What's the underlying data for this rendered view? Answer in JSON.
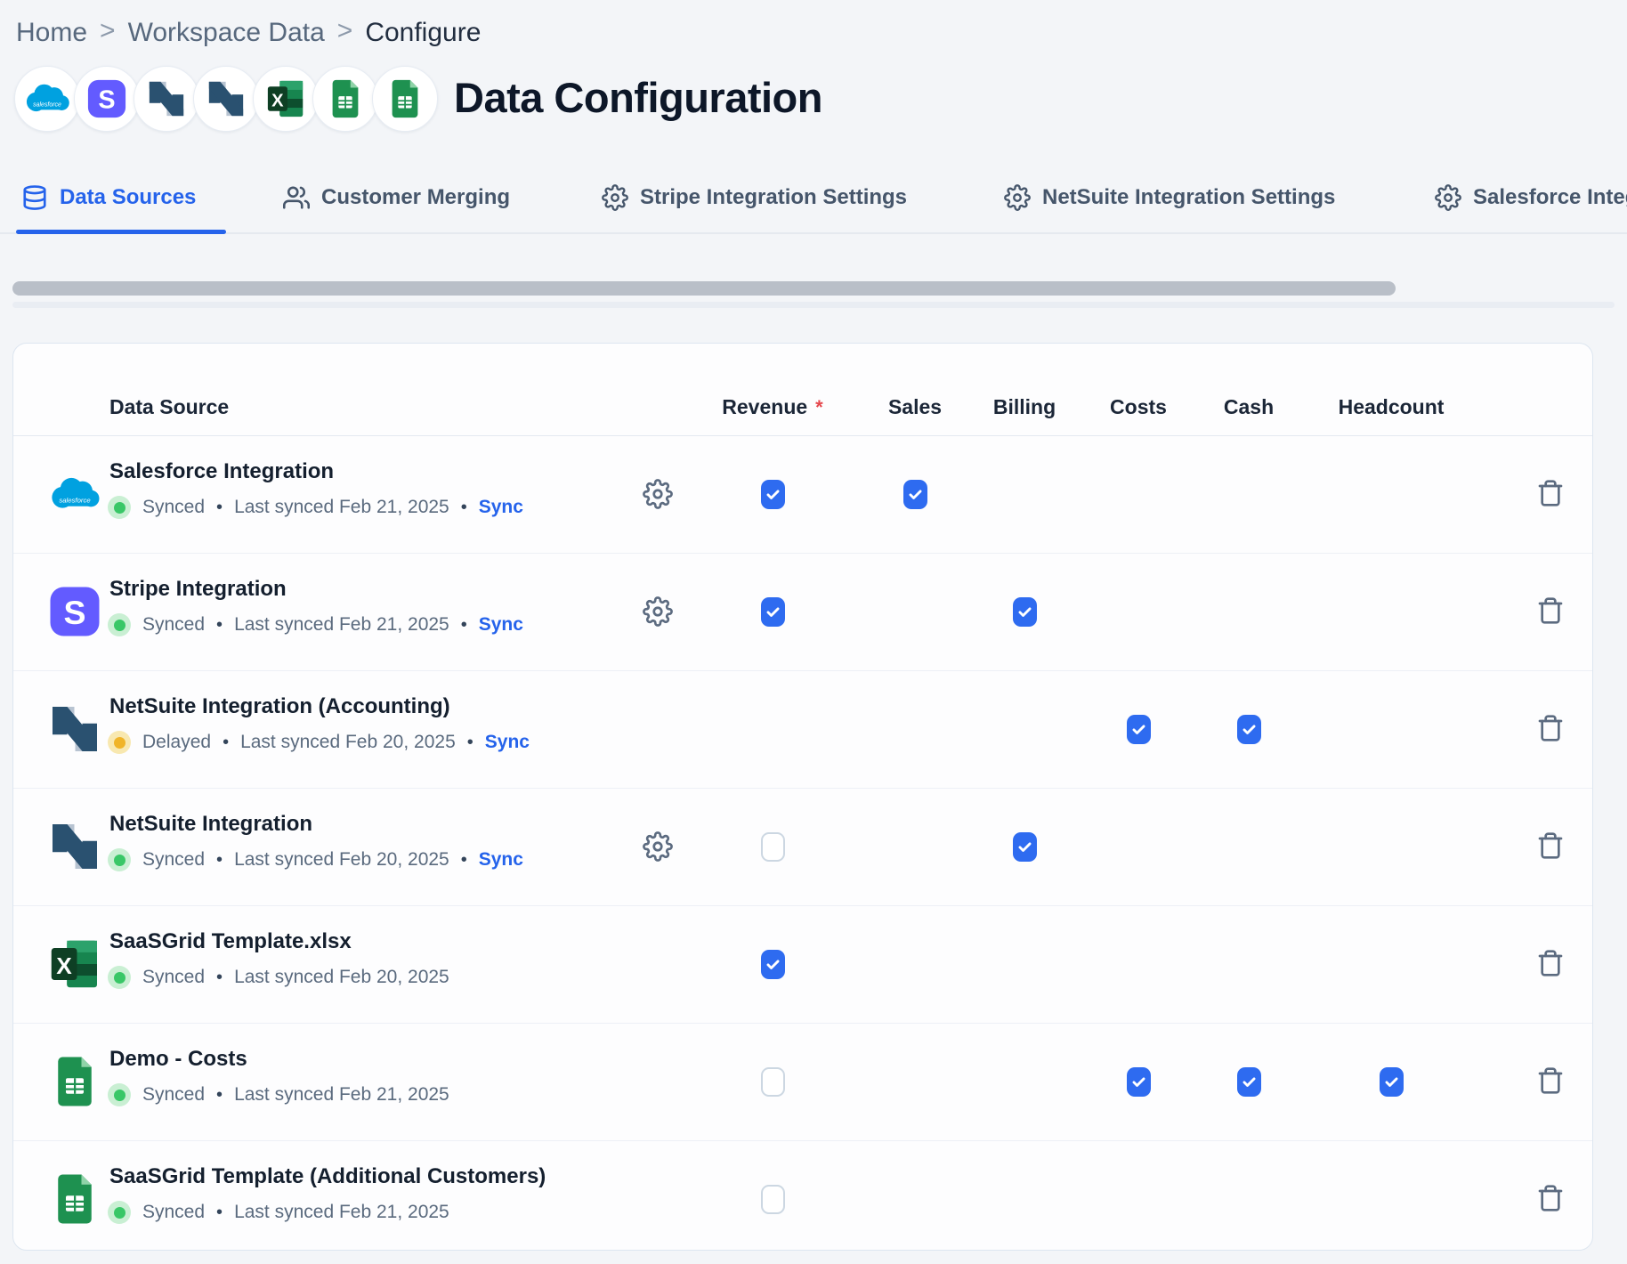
{
  "breadcrumb": {
    "separator": ">",
    "items": [
      {
        "label": "Home"
      },
      {
        "label": "Workspace Data"
      },
      {
        "label": "Configure"
      }
    ]
  },
  "header": {
    "title": "Data Configuration",
    "source_icons": [
      "salesforce",
      "stripe",
      "netsuite",
      "netsuite",
      "excel",
      "gsheets",
      "gsheets"
    ]
  },
  "tabs": [
    {
      "label": "Data Sources",
      "icon": "database-icon",
      "active": true
    },
    {
      "label": "Customer Merging",
      "icon": "users-icon",
      "active": false
    },
    {
      "label": "Stripe Integration Settings",
      "icon": "gear-icon",
      "active": false
    },
    {
      "label": "NetSuite Integration Settings",
      "icon": "gear-icon",
      "active": false
    },
    {
      "label": "Salesforce Integration Settings",
      "icon": "gear-icon",
      "active": false
    }
  ],
  "table": {
    "columns": {
      "data_source": "Data Source",
      "revenue": "Revenue",
      "sales": "Sales",
      "billing": "Billing",
      "costs": "Costs",
      "cash": "Cash",
      "headcount": "Headcount"
    },
    "required_marker": "*",
    "rows": [
      {
        "name": "Salesforce Integration",
        "icon": "salesforce",
        "status": "Synced",
        "status_color": "green",
        "last_synced": "Last synced Feb 21, 2025",
        "sync_link": "Sync",
        "has_settings": true,
        "checks": {
          "revenue": "checked",
          "sales": "checked"
        }
      },
      {
        "name": "Stripe Integration",
        "icon": "stripe",
        "status": "Synced",
        "status_color": "green",
        "last_synced": "Last synced Feb 21, 2025",
        "sync_link": "Sync",
        "has_settings": true,
        "checks": {
          "revenue": "checked",
          "billing": "checked"
        }
      },
      {
        "name": "NetSuite Integration (Accounting)",
        "icon": "netsuite",
        "status": "Delayed",
        "status_color": "yellow",
        "last_synced": "Last synced Feb 20, 2025",
        "sync_link": "Sync",
        "has_settings": false,
        "checks": {
          "costs": "checked",
          "cash": "checked"
        }
      },
      {
        "name": "NetSuite Integration",
        "icon": "netsuite",
        "status": "Synced",
        "status_color": "green",
        "last_synced": "Last synced Feb 20, 2025",
        "sync_link": "Sync",
        "has_settings": true,
        "checks": {
          "revenue": "empty",
          "billing": "checked"
        }
      },
      {
        "name": "SaaSGrid Template.xlsx",
        "icon": "excel",
        "status": "Synced",
        "status_color": "green",
        "last_synced": "Last synced Feb 20, 2025",
        "sync_link": null,
        "has_settings": false,
        "checks": {
          "revenue": "checked"
        }
      },
      {
        "name": "Demo - Costs",
        "icon": "gsheets",
        "status": "Synced",
        "status_color": "green",
        "last_synced": "Last synced Feb 21, 2025",
        "sync_link": null,
        "has_settings": false,
        "checks": {
          "revenue": "empty",
          "costs": "checked",
          "cash": "checked",
          "headcount": "checked"
        }
      },
      {
        "name": "SaaSGrid Template (Additional Customers)",
        "icon": "gsheets",
        "status": "Synced",
        "status_color": "green",
        "last_synced": "Last synced Feb 21, 2025",
        "sync_link": null,
        "has_settings": false,
        "checks": {
          "revenue": "empty"
        }
      }
    ]
  },
  "colors": {
    "accent_blue": "#2563eb",
    "checkbox_blue": "#2e6bf0",
    "synced_green": "#39c767",
    "delayed_yellow": "#f0b429",
    "required_red": "#e5484d",
    "salesforce_blue": "#00a1e0",
    "stripe_purple": "#635bff",
    "netsuite_navy": "#2a5170",
    "excel_green": "#17854f",
    "sheets_green": "#1e9150"
  }
}
